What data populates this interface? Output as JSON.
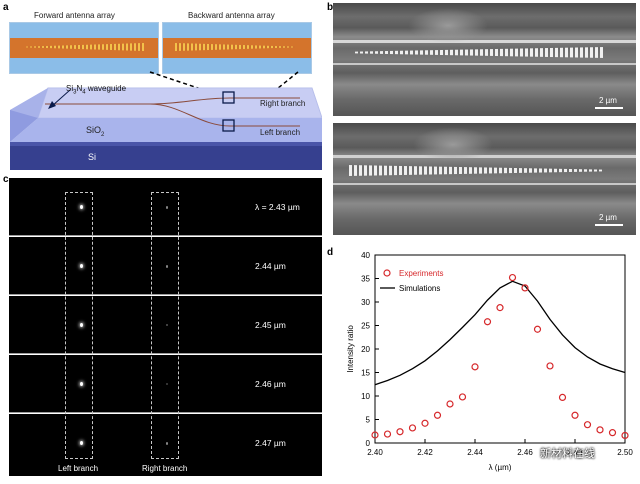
{
  "panel_a": {
    "label": "a",
    "forward_title": "Forward antenna array",
    "backward_title": "Backward antenna array",
    "waveguide_label_pre": "Si",
    "waveguide_sub1": "3",
    "waveguide_mid": "N",
    "waveguide_sub2": "4",
    "waveguide_label_post": " waveguide",
    "right_branch": "Right branch",
    "left_branch": "Left branch",
    "sio2_pre": "SiO",
    "sio2_sub": "2",
    "si": "Si"
  },
  "panel_b": {
    "label": "b",
    "scale_top": "2 µm",
    "scale_bottom": "2 µm"
  },
  "panel_c": {
    "label": "c",
    "wavelengths": [
      "λ = 2.43 µm",
      "2.44 µm",
      "2.45 µm",
      "2.46 µm",
      "2.47 µm"
    ],
    "left_label": "Left branch",
    "right_label": "Right branch"
  },
  "panel_d": {
    "label": "d",
    "watermark": "新材料在线"
  },
  "colors": {
    "experiments": "#d6282b",
    "simulations": "#000000",
    "orange_wg": "#d8772e",
    "blue_sky": "#8fbfea"
  },
  "chart_data": {
    "type": "scatter",
    "xlabel": "λ (µm)",
    "ylabel": "Intensity ratio",
    "xlim": [
      2.4,
      2.5
    ],
    "ylim": [
      0,
      40
    ],
    "xticks": [
      "2.40",
      "2.42",
      "2.44",
      "2.46",
      "2.48",
      "2.50"
    ],
    "yticks": [
      "0",
      "5",
      "10",
      "15",
      "20",
      "25",
      "30",
      "35",
      "40"
    ],
    "legend": "top-left",
    "grid": false,
    "series": [
      {
        "name": "Experiments",
        "kind": "markers",
        "x": [
          2.4,
          2.405,
          2.41,
          2.415,
          2.42,
          2.425,
          2.43,
          2.435,
          2.44,
          2.445,
          2.45,
          2.455,
          2.46,
          2.465,
          2.47,
          2.475,
          2.48,
          2.485,
          2.49,
          2.495,
          2.5
        ],
        "y": [
          1.7,
          1.9,
          2.4,
          3.2,
          4.2,
          5.9,
          8.3,
          9.8,
          16.2,
          25.8,
          28.8,
          35.2,
          33.0,
          24.2,
          16.4,
          9.7,
          5.9,
          3.9,
          2.8,
          2.2,
          1.6
        ]
      },
      {
        "name": "Simulations",
        "kind": "line",
        "x": [
          2.4,
          2.405,
          2.41,
          2.415,
          2.42,
          2.425,
          2.43,
          2.435,
          2.44,
          2.445,
          2.45,
          2.455,
          2.46,
          2.465,
          2.47,
          2.475,
          2.48,
          2.485,
          2.49,
          2.495,
          2.5
        ],
        "y": [
          12.4,
          13.3,
          14.4,
          15.8,
          17.5,
          19.6,
          22.0,
          24.6,
          27.3,
          30.4,
          33.0,
          34.4,
          33.4,
          30.2,
          26.3,
          23.0,
          20.3,
          18.3,
          16.8,
          15.8,
          15.0
        ]
      }
    ]
  }
}
